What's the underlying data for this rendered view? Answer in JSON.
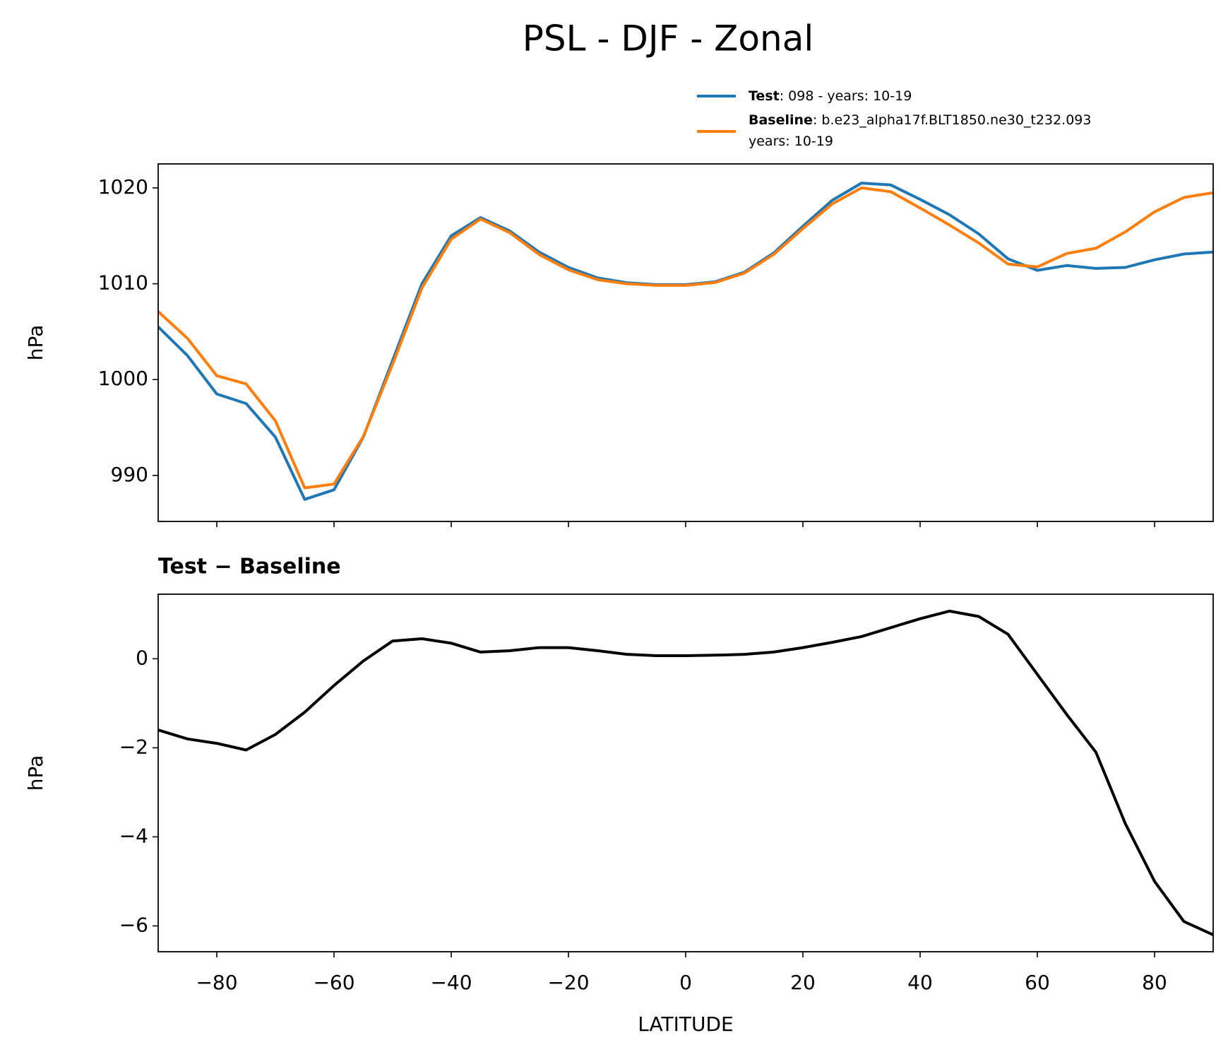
{
  "title": "PSL - DJF - Zonal",
  "chart_data": [
    {
      "type": "line",
      "ylabel": "hPa",
      "x": [
        -90,
        -85,
        -80,
        -75,
        -70,
        -65,
        -60,
        -55,
        -50,
        -45,
        -40,
        -35,
        -30,
        -25,
        -20,
        -15,
        -10,
        -5,
        0,
        5,
        10,
        15,
        20,
        25,
        30,
        35,
        40,
        45,
        50,
        55,
        60,
        65,
        70,
        75,
        80,
        85,
        90
      ],
      "series": [
        {
          "name": "Test",
          "label_lines": [
            ": 098 - years: 10-19"
          ],
          "color": "#1f77b4",
          "values": [
            1005.5,
            1002.5,
            998.5,
            997.5,
            994,
            987.5,
            988.5,
            994,
            1002,
            1010,
            1015,
            1016.9,
            1015.5,
            1013.3,
            1011.7,
            1010.6,
            1010.1,
            1009.9,
            1009.9,
            1010.2,
            1011.2,
            1013.2,
            1016,
            1018.7,
            1020.5,
            1020.3,
            1018.8,
            1017.2,
            1015.2,
            1012.6,
            1011.4,
            1011.9,
            1011.6,
            1011.7,
            1012.5,
            1013.1,
            1013.3
          ]
        },
        {
          "name": "Baseline",
          "label_lines": [
            ": b.e23_alpha17f.BLT1850.ne30_t232.093",
            "years: 10-19"
          ],
          "color": "#ff7f0e",
          "values": [
            1007.1,
            1004.3,
            1000.4,
            999.55,
            995.7,
            988.7,
            989.1,
            994.05,
            1001.6,
            1009.55,
            1014.65,
            1016.75,
            1015.32,
            1013.05,
            1011.45,
            1010.42,
            1010,
            1009.83,
            1009.83,
            1010.12,
            1011.1,
            1013.05,
            1015.75,
            1018.33,
            1020,
            1019.6,
            1017.9,
            1016.13,
            1014.25,
            1012.05,
            1011.75,
            1013.15,
            1013.7,
            1015.4,
            1017.5,
            1019,
            1019.5
          ]
        }
      ],
      "xlim": [
        -90,
        90
      ],
      "xticks": [
        -80,
        -60,
        -40,
        -20,
        0,
        20,
        40,
        60,
        80
      ],
      "ylim": [
        985.2,
        1022.5
      ],
      "yticks": [
        990,
        1000,
        1010,
        1020
      ]
    },
    {
      "type": "line",
      "title": "Test − Baseline",
      "xlabel": "LATITUDE",
      "ylabel": "hPa",
      "color": "#000000",
      "x": [
        -90,
        -85,
        -80,
        -75,
        -70,
        -65,
        -60,
        -55,
        -50,
        -45,
        -40,
        -35,
        -30,
        -25,
        -20,
        -15,
        -10,
        -5,
        0,
        5,
        10,
        15,
        20,
        25,
        30,
        35,
        40,
        45,
        50,
        55,
        60,
        65,
        70,
        75,
        80,
        85,
        90
      ],
      "values": [
        -1.6,
        -1.8,
        -1.9,
        -2.05,
        -1.7,
        -1.2,
        -0.6,
        -0.05,
        0.4,
        0.45,
        0.35,
        0.15,
        0.18,
        0.25,
        0.25,
        0.18,
        0.1,
        0.07,
        0.07,
        0.08,
        0.1,
        0.15,
        0.25,
        0.37,
        0.5,
        0.7,
        0.9,
        1.07,
        0.95,
        0.55,
        -0.35,
        -1.25,
        -2.1,
        -3.7,
        -5,
        -5.9,
        -6.2
      ],
      "xlim": [
        -90,
        90
      ],
      "xticks": [
        {
          "value": -80,
          "label": "−80"
        },
        {
          "value": -60,
          "label": "−60"
        },
        {
          "value": -40,
          "label": "−40"
        },
        {
          "value": -20,
          "label": "−20"
        },
        0,
        20,
        40,
        60,
        80
      ],
      "ylim": [
        -6.58,
        1.45
      ],
      "yticks": [
        {
          "value": -6,
          "label": "−6"
        },
        {
          "value": -4,
          "label": "−4"
        },
        {
          "value": -2,
          "label": "−2"
        },
        0
      ]
    }
  ]
}
